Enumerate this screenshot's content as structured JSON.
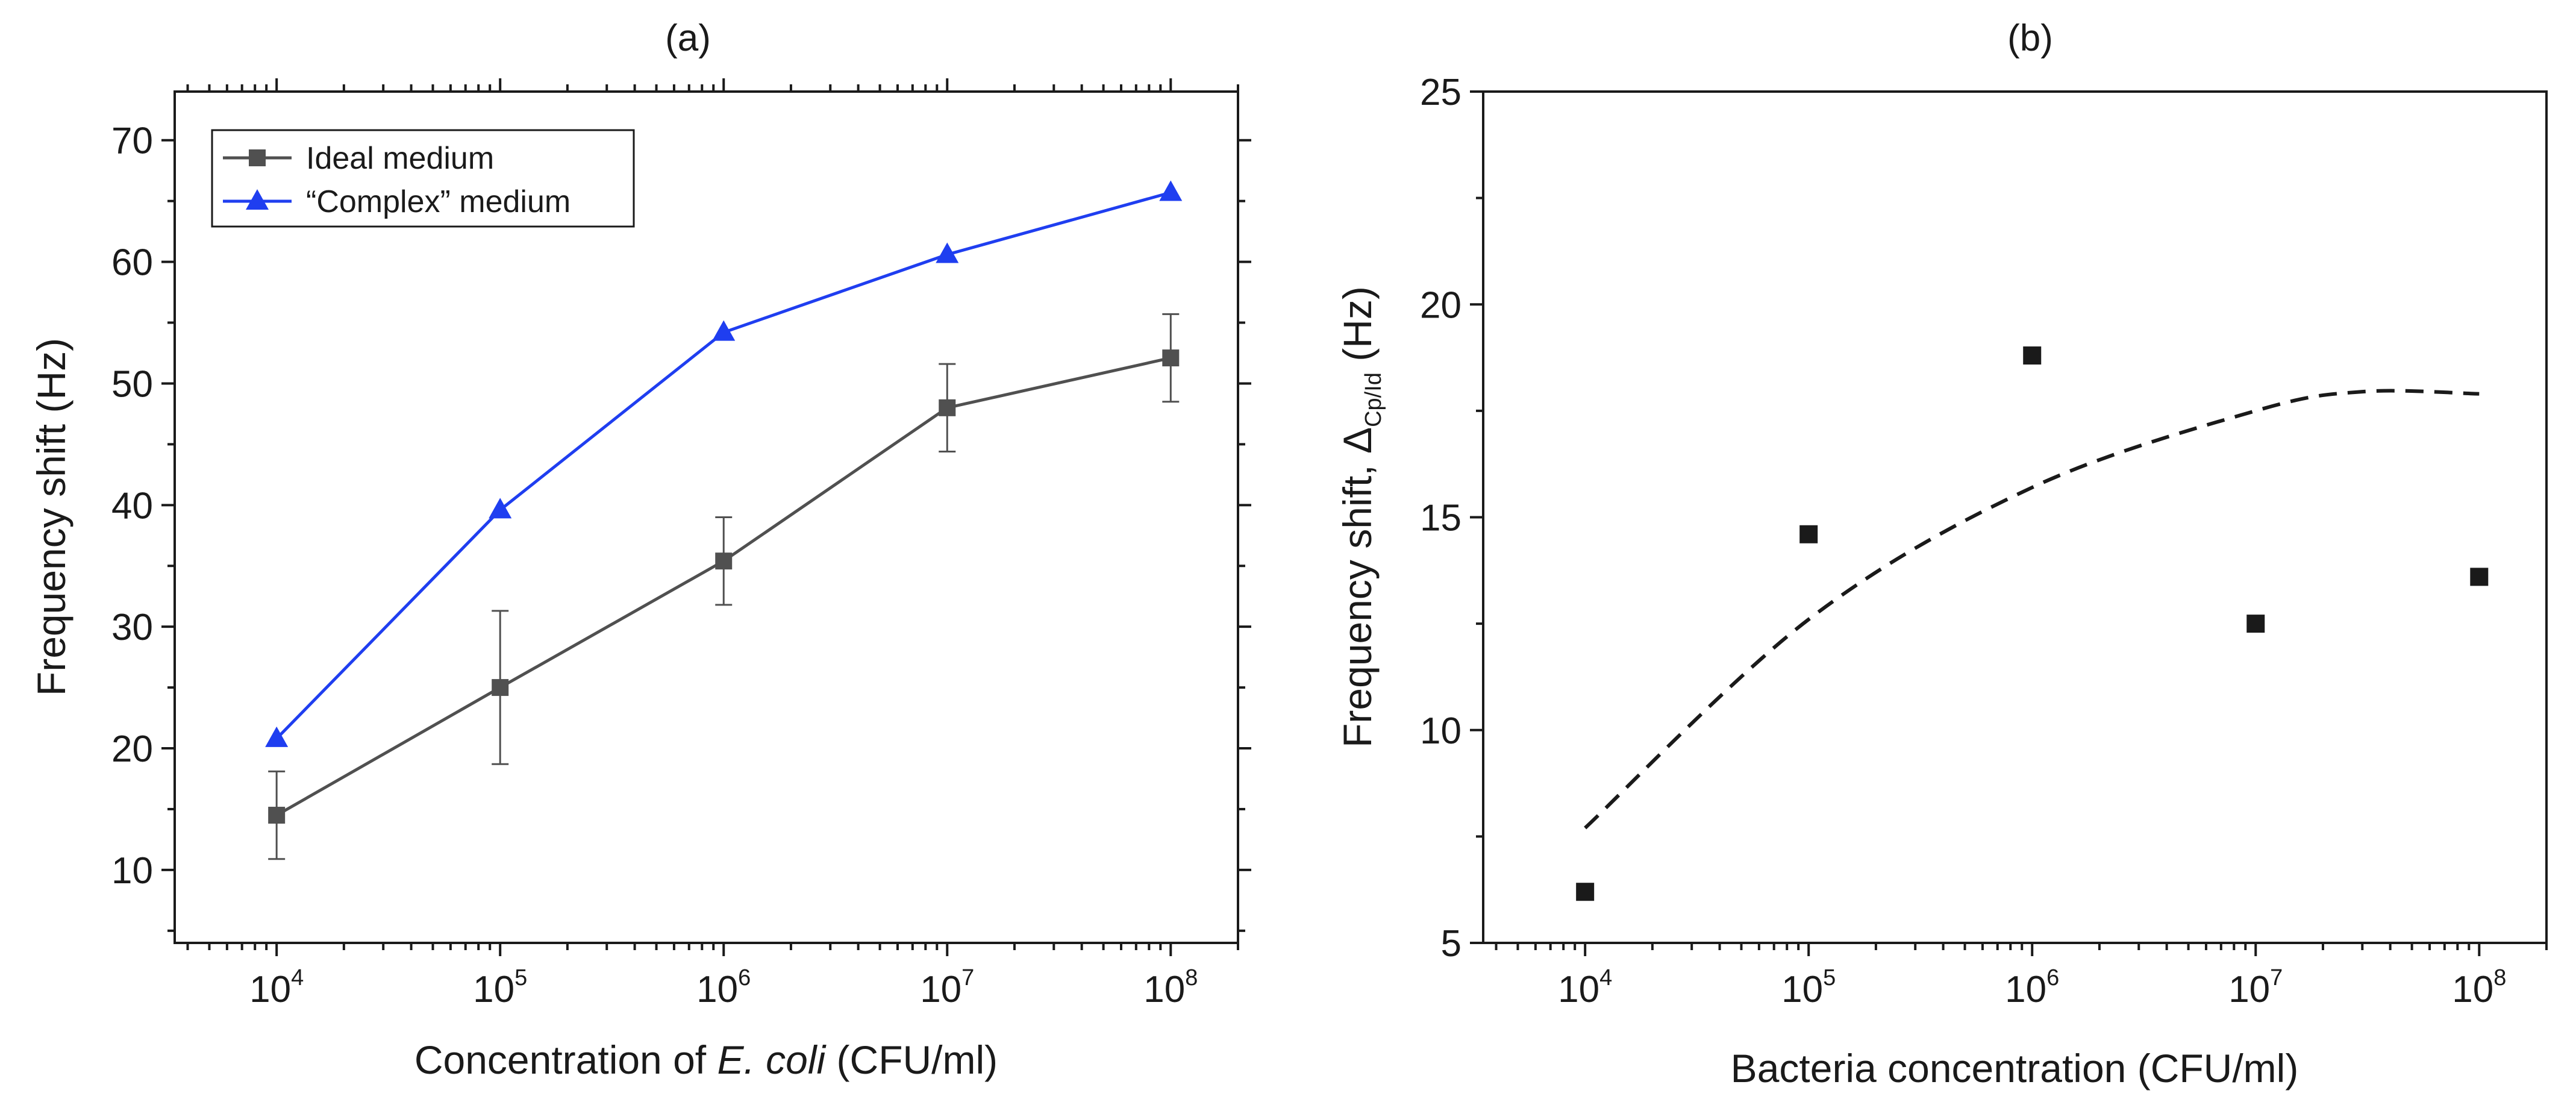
{
  "chart_data": [
    {
      "panel": "(a)",
      "type": "line",
      "xscale": "log",
      "x": [
        10000,
        100000,
        1000000,
        10000000,
        100000000
      ],
      "x_tick_labels": [
        {
          "base": "10",
          "exp": "4"
        },
        {
          "base": "10",
          "exp": "5"
        },
        {
          "base": "10",
          "exp": "6"
        },
        {
          "base": "10",
          "exp": "7"
        },
        {
          "base": "10",
          "exp": "8"
        }
      ],
      "xlim": [
        3500,
        200000000
      ],
      "ylim": [
        4,
        74
      ],
      "y_ticks": [
        10,
        20,
        30,
        40,
        50,
        60,
        70
      ],
      "xlabel_prefix": "Concentration of ",
      "xlabel_italic": "E. coli",
      "xlabel_suffix": " (CFU/ml)",
      "ylabel": "Frequency shift (Hz)",
      "legend_position": "top-left",
      "series": [
        {
          "name": "Ideal medium",
          "marker": "square",
          "color": "#505050",
          "values": [
            14.5,
            25.0,
            35.4,
            48.0,
            52.1
          ],
          "errors": [
            3.6,
            6.3,
            3.6,
            3.6,
            3.6
          ]
        },
        {
          "name": "“Complex” medium",
          "marker": "triangle",
          "color": "#1f3ef0",
          "values": [
            20.8,
            39.6,
            54.2,
            60.6,
            65.7
          ]
        }
      ]
    },
    {
      "panel": "(b)",
      "type": "scatter",
      "xscale": "log",
      "x": [
        10000,
        100000,
        1000000,
        10000000,
        100000000
      ],
      "x_tick_labels": [
        {
          "base": "10",
          "exp": "4"
        },
        {
          "base": "10",
          "exp": "5"
        },
        {
          "base": "10",
          "exp": "6"
        },
        {
          "base": "10",
          "exp": "7"
        },
        {
          "base": "10",
          "exp": "8"
        }
      ],
      "xlim": [
        3500,
        200000000
      ],
      "ylim": [
        5,
        25
      ],
      "y_ticks": [
        5,
        10,
        15,
        20,
        25
      ],
      "xlabel": "Bacteria concentration (CFU/ml)",
      "ylabel_prefix": "Frequency shift, ",
      "ylabel_symbol": "Δ",
      "ylabel_sub": "Cp/Id",
      "ylabel_suffix": " (Hz)",
      "series": [
        {
          "name": "points",
          "marker": "square",
          "color": "#1a1a1a",
          "values": [
            6.2,
            14.6,
            18.8,
            12.5,
            13.6
          ]
        }
      ],
      "fit": {
        "style": "dashed",
        "color": "#1a1a1a",
        "x": [
          10000,
          100000,
          1000000,
          10000000,
          30000000,
          100000000
        ],
        "y": [
          7.7,
          12.6,
          15.7,
          17.5,
          17.95,
          17.9
        ]
      }
    }
  ]
}
